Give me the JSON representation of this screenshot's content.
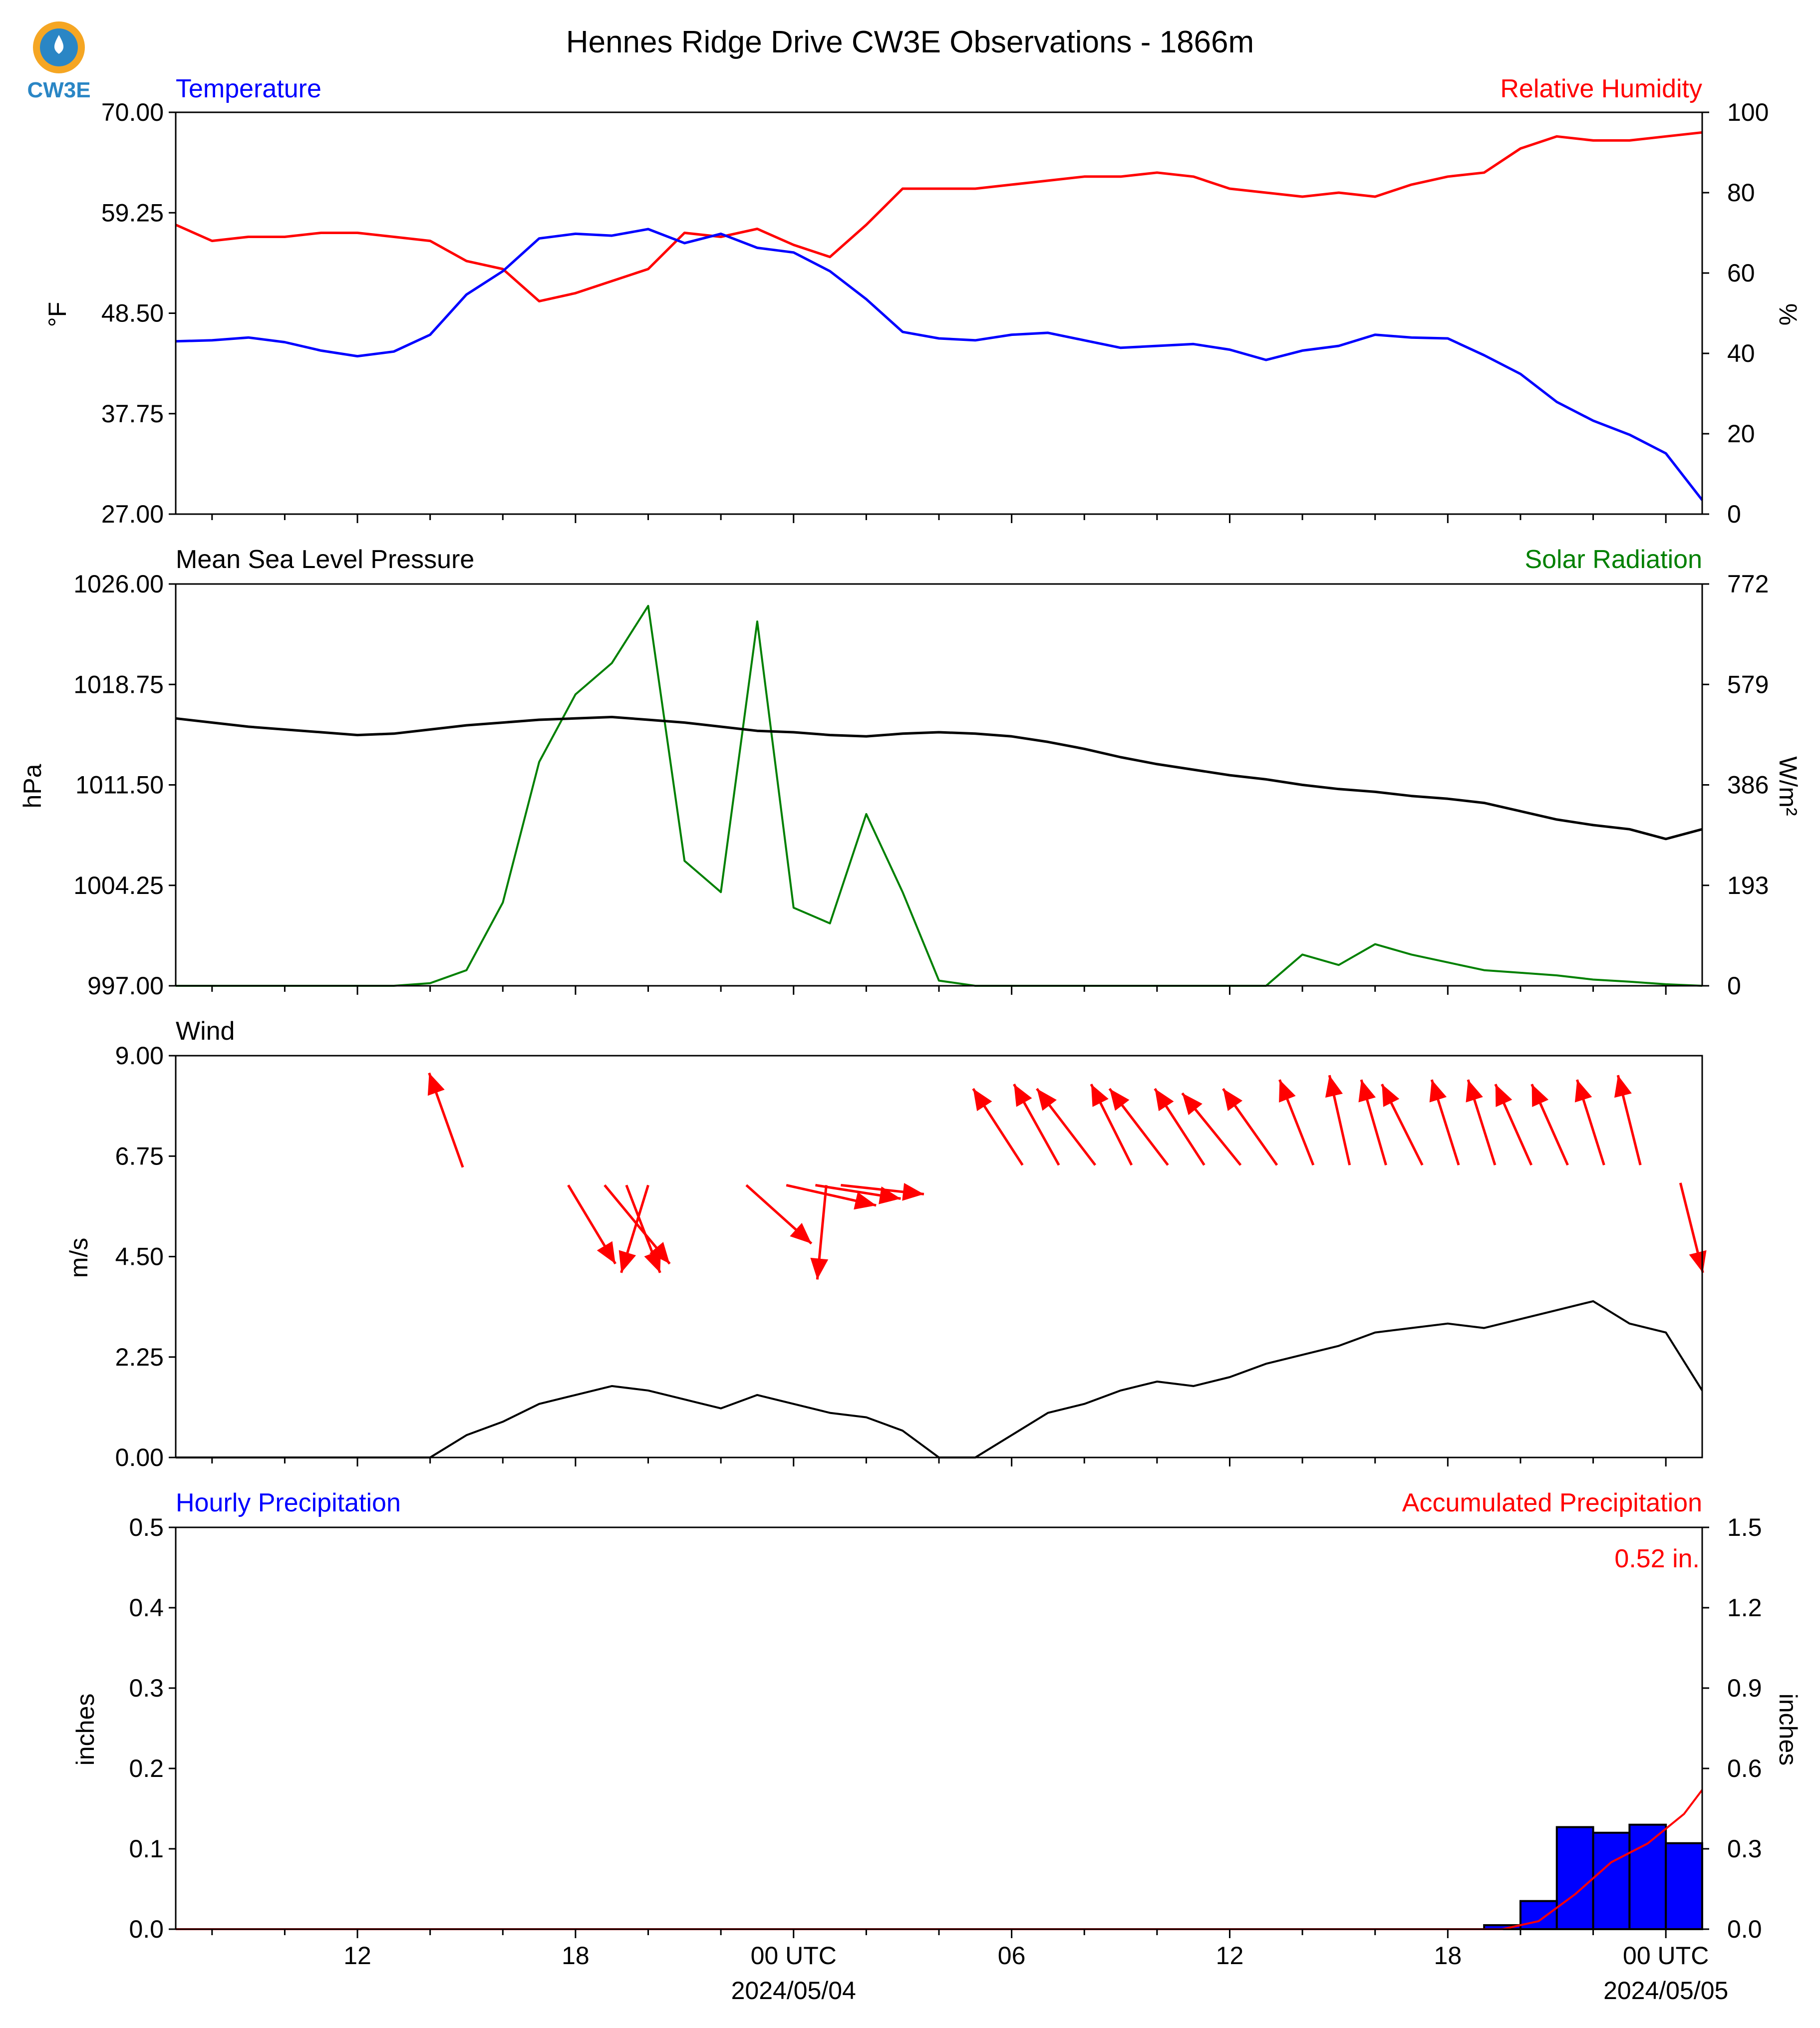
{
  "title": "Hennes Ridge Drive CW3E Observations - 1866m",
  "logo_text": "CW3E",
  "colors": {
    "blue": "#0000ff",
    "red": "#ff0000",
    "green": "#008000",
    "black": "#000000"
  },
  "panel1": {
    "left_label": "Temperature",
    "right_label": "Relative Humidity",
    "left_unit": "°F",
    "right_unit": "%",
    "left_ticks": [
      "70.00",
      "59.25",
      "48.50",
      "37.75",
      "27.00"
    ],
    "right_ticks": [
      "100",
      "80",
      "60",
      "40",
      "20",
      "0"
    ]
  },
  "panel2": {
    "left_label": "Mean Sea Level Pressure",
    "right_label": "Solar Radiation",
    "left_unit": "hPa",
    "right_unit": "W/m²",
    "left_ticks": [
      "1026.00",
      "1018.75",
      "1011.50",
      "1004.25",
      "997.00"
    ],
    "right_ticks": [
      "772",
      "579",
      "386",
      "193",
      "0"
    ]
  },
  "panel3": {
    "left_label": "Wind",
    "left_unit": "m/s",
    "left_ticks": [
      "9.00",
      "6.75",
      "4.50",
      "2.25",
      "0.00"
    ]
  },
  "panel4": {
    "left_label": "Hourly Precipitation",
    "right_label": "Accumulated Precipitation",
    "left_unit": "inches",
    "right_unit": "inches",
    "left_ticks": [
      "0.5",
      "0.4",
      "0.3",
      "0.2",
      "0.1",
      "0.0"
    ],
    "right_ticks": [
      "1.5",
      "1.2",
      "0.9",
      "0.6",
      "0.3",
      "0.0"
    ],
    "annotation": "0.52 in."
  },
  "xaxis": {
    "tick_labels": [
      "12",
      "18",
      "00 UTC",
      "06",
      "12",
      "18",
      "00 UTC"
    ],
    "date_labels": [
      "2024/05/04",
      "2024/05/05"
    ]
  },
  "chart_data": [
    {
      "type": "line",
      "title": "Temperature / Relative Humidity",
      "x_hours": [
        0,
        1,
        2,
        3,
        4,
        5,
        6,
        7,
        8,
        9,
        10,
        11,
        12,
        13,
        14,
        15,
        16,
        17,
        18,
        19,
        20,
        21,
        22,
        23,
        24,
        25,
        26,
        27,
        28,
        29,
        30,
        31,
        32,
        33,
        34,
        35,
        36,
        37,
        38,
        39,
        40,
        41,
        42
      ],
      "series": [
        {
          "name": "Temperature",
          "axis": "left",
          "ylim": [
            27,
            70
          ],
          "values": [
            45.5,
            45.6,
            45.9,
            45.4,
            44.5,
            43.9,
            44.4,
            46.2,
            50.5,
            53.0,
            56.5,
            57.0,
            56.8,
            57.5,
            56.0,
            57.0,
            55.5,
            55.0,
            53.0,
            50.0,
            46.5,
            45.8,
            45.6,
            46.2,
            46.4,
            45.6,
            44.8,
            45.0,
            45.2,
            44.6,
            43.5,
            44.5,
            45.0,
            46.2,
            45.9,
            45.8,
            44.0,
            42.0,
            39.0,
            37.0,
            35.5,
            33.5,
            28.5
          ]
        },
        {
          "name": "Relative Humidity",
          "axis": "right",
          "ylim": [
            0,
            100
          ],
          "values": [
            72,
            68,
            69,
            69,
            70,
            70,
            69,
            68,
            63,
            61,
            53,
            55,
            58,
            61,
            70,
            69,
            71,
            67,
            64,
            72,
            81,
            81,
            81,
            82,
            83,
            84,
            84,
            85,
            84,
            81,
            80,
            79,
            80,
            79,
            82,
            84,
            85,
            91,
            94,
            93,
            93,
            94,
            95
          ]
        }
      ]
    },
    {
      "type": "line",
      "title": "Mean Sea Level Pressure / Solar Radiation",
      "x_hours": [
        0,
        1,
        2,
        3,
        4,
        5,
        6,
        7,
        8,
        9,
        10,
        11,
        12,
        13,
        14,
        15,
        16,
        17,
        18,
        19,
        20,
        21,
        22,
        23,
        24,
        25,
        26,
        27,
        28,
        29,
        30,
        31,
        32,
        33,
        34,
        35,
        36,
        37,
        38,
        39,
        40,
        41,
        42
      ],
      "series": [
        {
          "name": "Mean Sea Level Pressure",
          "axis": "left",
          "ylim": [
            997,
            1026
          ],
          "values": [
            1016.3,
            1016.0,
            1015.7,
            1015.5,
            1015.3,
            1015.1,
            1015.2,
            1015.5,
            1015.8,
            1016.0,
            1016.2,
            1016.3,
            1016.4,
            1016.2,
            1016.0,
            1015.7,
            1015.4,
            1015.3,
            1015.1,
            1015.0,
            1015.2,
            1015.3,
            1015.2,
            1015.0,
            1014.6,
            1014.1,
            1013.5,
            1013.0,
            1012.6,
            1012.2,
            1011.9,
            1011.5,
            1011.2,
            1011.0,
            1010.7,
            1010.5,
            1010.2,
            1009.6,
            1009.0,
            1008.6,
            1008.3,
            1007.6,
            1008.3
          ]
        },
        {
          "name": "Solar Radiation",
          "axis": "right",
          "ylim": [
            0,
            772
          ],
          "values": [
            0,
            0,
            0,
            0,
            0,
            0,
            0,
            5,
            30,
            160,
            430,
            560,
            620,
            730,
            240,
            180,
            700,
            150,
            120,
            330,
            180,
            10,
            0,
            0,
            0,
            0,
            0,
            0,
            0,
            0,
            0,
            60,
            40,
            80,
            60,
            45,
            30,
            25,
            20,
            12,
            8,
            3,
            0
          ]
        }
      ]
    },
    {
      "type": "line",
      "title": "Wind",
      "ylim": [
        0,
        9
      ],
      "x_hours": [
        0,
        1,
        2,
        3,
        4,
        5,
        6,
        7,
        8,
        9,
        10,
        11,
        12,
        13,
        14,
        15,
        16,
        17,
        18,
        19,
        20,
        21,
        22,
        23,
        24,
        25,
        26,
        27,
        28,
        29,
        30,
        31,
        32,
        33,
        34,
        35,
        36,
        37,
        38,
        39,
        40,
        41,
        42
      ],
      "series": [
        {
          "name": "Wind Speed",
          "values": [
            0,
            0,
            0,
            0,
            0,
            0,
            0,
            0,
            0.5,
            0.8,
            1.2,
            1.4,
            1.6,
            1.5,
            1.3,
            1.1,
            1.4,
            1.2,
            1.0,
            0.9,
            0.6,
            0,
            0,
            0.5,
            1.0,
            1.2,
            1.5,
            1.7,
            1.6,
            1.8,
            2.1,
            2.3,
            2.5,
            2.8,
            2.9,
            3.0,
            2.9,
            3.1,
            3.3,
            3.5,
            3.0,
            2.8,
            1.5
          ]
        }
      ],
      "wind_vectors": [
        {
          "hour": 7.9,
          "u": -0.75,
          "v": 2.1,
          "base": 6.5
        },
        {
          "hour": 10.8,
          "u": 1.05,
          "v": -1.75,
          "base": 6.1
        },
        {
          "hour": 11.8,
          "u": 1.45,
          "v": -1.75,
          "base": 6.1
        },
        {
          "hour": 12.4,
          "u": 0.75,
          "v": -1.95,
          "base": 6.1
        },
        {
          "hour": 13.0,
          "u": -0.6,
          "v": -1.95,
          "base": 6.1
        },
        {
          "hour": 15.7,
          "u": 1.45,
          "v": -1.3,
          "base": 6.1
        },
        {
          "hour": 16.8,
          "u": 2.0,
          "v": -0.45,
          "base": 6.1
        },
        {
          "hour": 17.6,
          "u": 1.9,
          "v": -0.3,
          "base": 6.1
        },
        {
          "hour": 18.3,
          "u": 1.85,
          "v": -0.2,
          "base": 6.1
        },
        {
          "hour": 17.9,
          "u": -0.2,
          "v": -2.1,
          "base": 6.1
        },
        {
          "hour": 23.3,
          "u": -1.1,
          "v": 1.7,
          "base": 6.55
        },
        {
          "hour": 24.3,
          "u": -1.0,
          "v": 1.8,
          "base": 6.55
        },
        {
          "hour": 25.3,
          "u": -1.3,
          "v": 1.7,
          "base": 6.55
        },
        {
          "hour": 26.3,
          "u": -0.9,
          "v": 1.8,
          "base": 6.55
        },
        {
          "hour": 27.3,
          "u": -1.3,
          "v": 1.7,
          "base": 6.55
        },
        {
          "hour": 28.3,
          "u": -1.1,
          "v": 1.7,
          "base": 6.55
        },
        {
          "hour": 29.3,
          "u": -1.3,
          "v": 1.6,
          "base": 6.55
        },
        {
          "hour": 30.3,
          "u": -1.2,
          "v": 1.7,
          "base": 6.55
        },
        {
          "hour": 31.3,
          "u": -0.75,
          "v": 1.9,
          "base": 6.55
        },
        {
          "hour": 32.3,
          "u": -0.45,
          "v": 2.0,
          "base": 6.55
        },
        {
          "hour": 33.3,
          "u": -0.55,
          "v": 1.9,
          "base": 6.55
        },
        {
          "hour": 34.3,
          "u": -0.9,
          "v": 1.8,
          "base": 6.55
        },
        {
          "hour": 35.3,
          "u": -0.6,
          "v": 1.9,
          "base": 6.55
        },
        {
          "hour": 36.3,
          "u": -0.6,
          "v": 1.9,
          "base": 6.55
        },
        {
          "hour": 37.3,
          "u": -0.8,
          "v": 1.8,
          "base": 6.55
        },
        {
          "hour": 38.3,
          "u": -0.8,
          "v": 1.8,
          "base": 6.55
        },
        {
          "hour": 39.3,
          "u": -0.6,
          "v": 1.9,
          "base": 6.55
        },
        {
          "hour": 40.3,
          "u": -0.5,
          "v": 2.0,
          "base": 6.55
        },
        {
          "hour": 41.4,
          "u": 0.5,
          "v": -2.0,
          "base": 6.15
        }
      ]
    },
    {
      "type": "bar",
      "title": "Hourly / Accumulated Precipitation",
      "xlim_hours": [
        0,
        42
      ],
      "ylim": [
        0,
        0.5
      ],
      "series": [
        {
          "name": "Hourly Precipitation",
          "bars": [
            {
              "hour": 36,
              "value": 0.005
            },
            {
              "hour": 37,
              "value": 0.035
            },
            {
              "hour": 38,
              "value": 0.127
            },
            {
              "hour": 39,
              "value": 0.12
            },
            {
              "hour": 40,
              "value": 0.13
            },
            {
              "hour": 41,
              "value": 0.107
            }
          ]
        },
        {
          "name": "Accumulated Precipitation",
          "axis": "right",
          "ylim": [
            0,
            1.5
          ],
          "x_hours": [
            0,
            36.5,
            37.5,
            38.5,
            39.5,
            40.5,
            41.5,
            42
          ],
          "values": [
            0,
            0,
            0.03,
            0.13,
            0.25,
            0.32,
            0.43,
            0.52
          ]
        }
      ]
    }
  ]
}
